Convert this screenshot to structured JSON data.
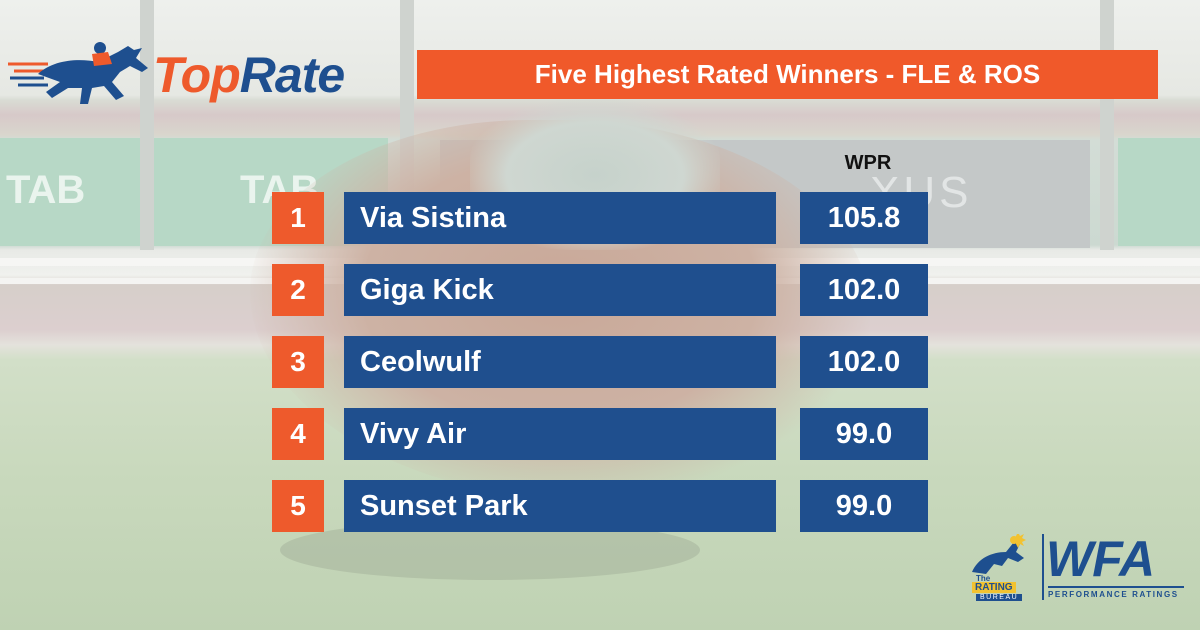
{
  "logo": {
    "top": "Top",
    "rate": "Rate"
  },
  "header": {
    "title": "Five Highest Rated Winners - FLE & ROS"
  },
  "table": {
    "wpr_header": "WPR",
    "rows": [
      {
        "rank": "1",
        "name": "Via Sistina",
        "wpr": "105.8"
      },
      {
        "rank": "2",
        "name": "Giga Kick",
        "wpr": "102.0"
      },
      {
        "rank": "3",
        "name": "Ceolwulf",
        "wpr": "102.0"
      },
      {
        "rank": "4",
        "name": "Vivy Air",
        "wpr": "99.0"
      },
      {
        "rank": "5",
        "name": "Sunset Park",
        "wpr": "99.0"
      }
    ]
  },
  "background": {
    "board_left": "TAB",
    "board_mid": "TAB",
    "board_sponsor": "XUS"
  },
  "wfa_logo": {
    "the": "The",
    "rating": "RATING",
    "bureau": "BUREAU",
    "wfa": "WFA",
    "sub": "PERFORMANCE RATINGS"
  },
  "colors": {
    "orange": "#ee5a2c",
    "navy": "#1f4f8e"
  }
}
